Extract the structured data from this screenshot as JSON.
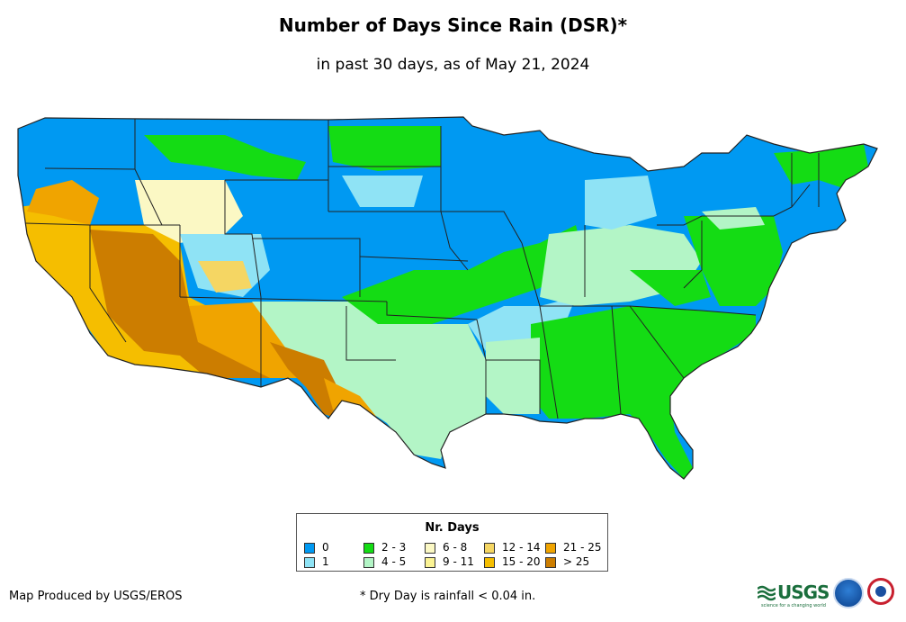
{
  "header": {
    "title": "Number of Days Since Rain (DSR)*",
    "subtitle": "in past 30 days, as of May 21, 2024"
  },
  "legend": {
    "title": "Nr. Days",
    "items": [
      {
        "label": "0",
        "color": "#0099f2"
      },
      {
        "label": "1",
        "color": "#8fe3f5"
      },
      {
        "label": "2 - 3",
        "color": "#14dc14"
      },
      {
        "label": "4 - 5",
        "color": "#b3f5c6"
      },
      {
        "label": "6 - 8",
        "color": "#fbf8c4"
      },
      {
        "label": "9 - 11",
        "color": "#fbf394"
      },
      {
        "label": "12 - 14",
        "color": "#f5d663"
      },
      {
        "label": "15 - 20",
        "color": "#f5be00"
      },
      {
        "label": "21 - 25",
        "color": "#f0a400"
      },
      {
        "label": "> 25",
        "color": "#cc7d00"
      }
    ]
  },
  "footer": {
    "producer": "Map Produced by USGS/EROS",
    "footnote": "* Dry Day is rainfall < 0.04 in."
  },
  "logos": {
    "usgs_text": "USGS",
    "usgs_tagline": "science for a changing world"
  }
}
